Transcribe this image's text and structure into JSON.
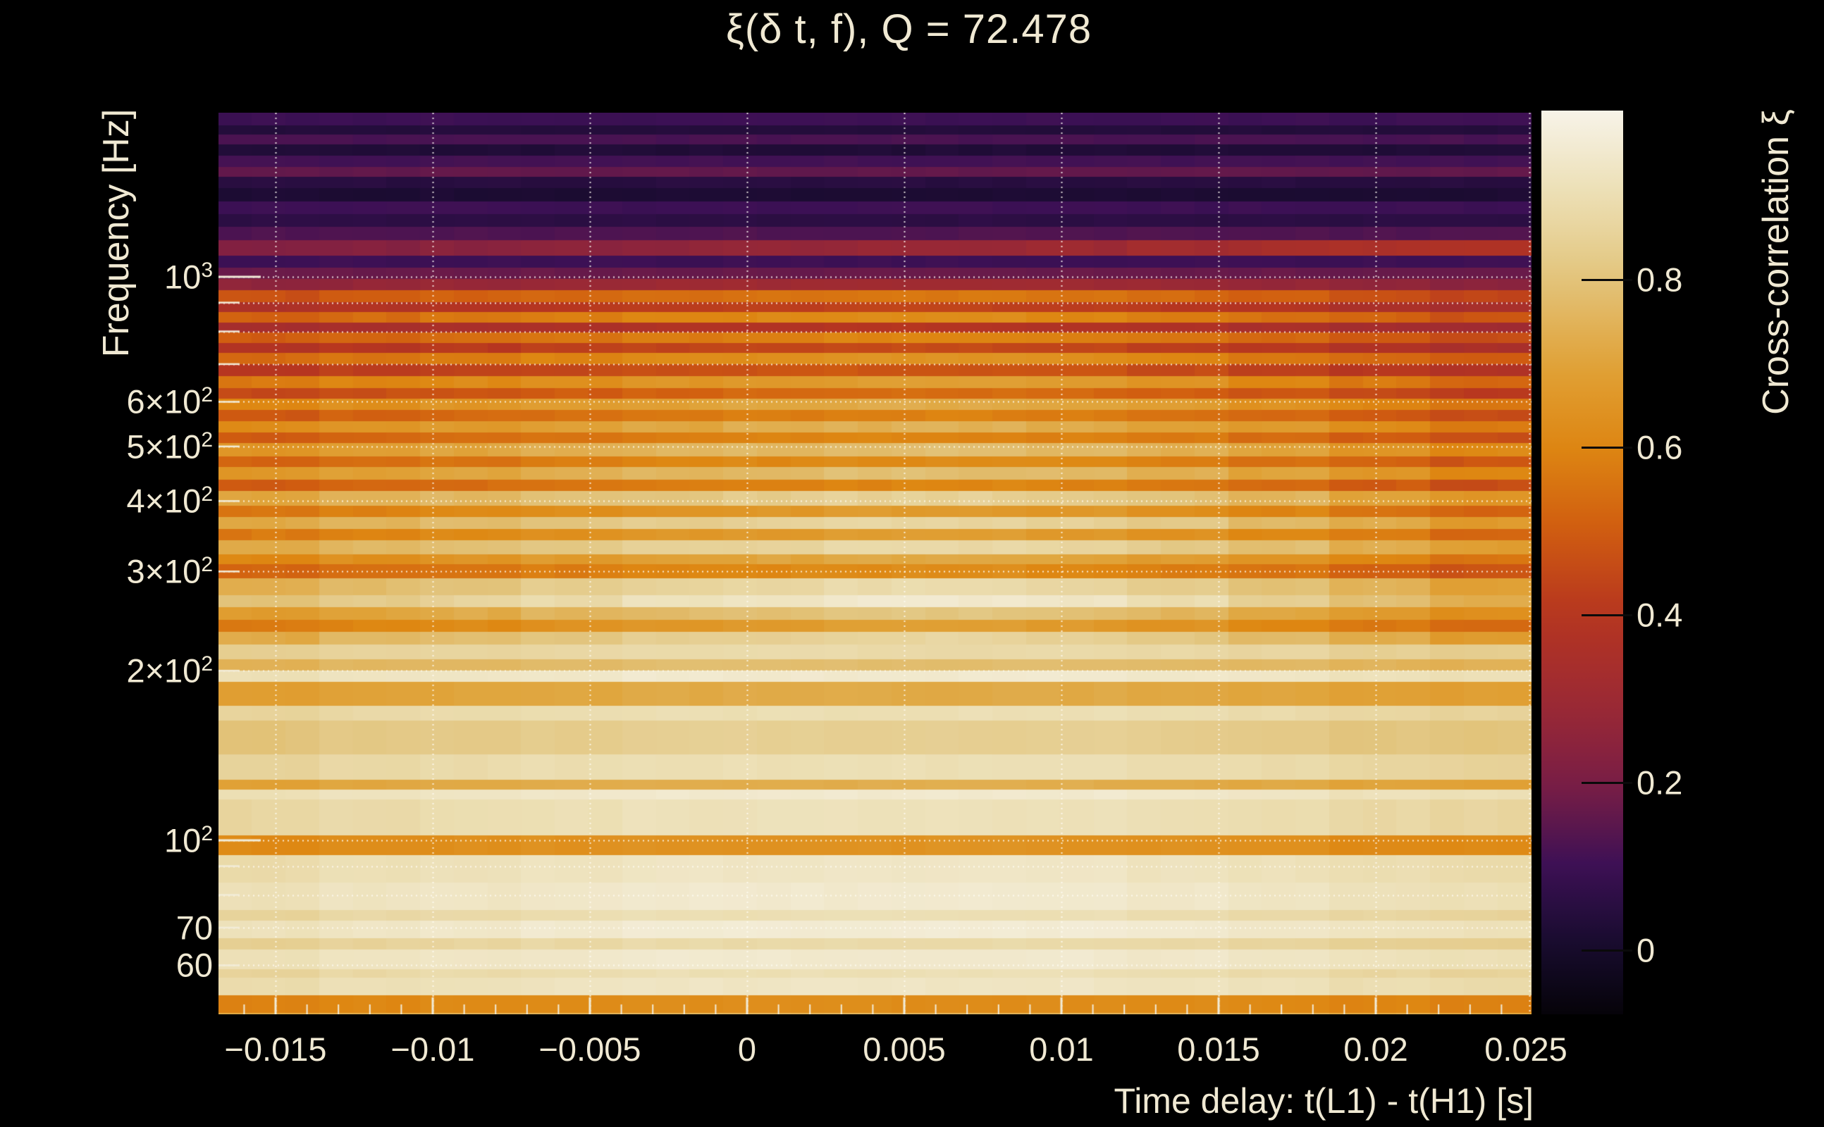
{
  "title": "ξ(δ t, f), Q = 72.478",
  "colors": {
    "background": "#000000",
    "text": "#f0e9d3",
    "gridline": "rgba(255,253,244,0.85)",
    "axis_tick": "#f2ecd8",
    "colorbar_tick": "#0a0a0a"
  },
  "chart_data": {
    "type": "heatmap",
    "title": "ξ(δ t, f), Q = 72.478",
    "xlabel": "Time delay: t(L1) - t(H1) [s]",
    "ylabel": "Frequency [Hz]",
    "colorbar_label": "Cross-correlation ξ",
    "x_range_s": [
      -0.01688,
      0.02496
    ],
    "y_range_hz": [
      48.8,
      1955
    ],
    "y_scale": "log",
    "grid": "dotted-white-major-and-minor",
    "x_ticks": {
      "values": [
        -0.015,
        -0.01,
        -0.005,
        0,
        0.005,
        0.01,
        0.015,
        0.02,
        0.025
      ],
      "labels": [
        "−0.015",
        "−0.01",
        "−0.005",
        "0",
        "0.005",
        "0.01",
        "0.015",
        "0.02",
        "0.025"
      ],
      "minor_step_s": 0.001
    },
    "y_ticks": [
      {
        "f": 1000,
        "base": "10",
        "exp": "3"
      },
      {
        "f": 600,
        "base": "6×10",
        "exp": "2"
      },
      {
        "f": 500,
        "base": "5×10",
        "exp": "2"
      },
      {
        "f": 400,
        "base": "4×10",
        "exp": "2"
      },
      {
        "f": 300,
        "base": "3×10",
        "exp": "2"
      },
      {
        "f": 200,
        "base": "2×10",
        "exp": "2"
      },
      {
        "f": 100,
        "base": "10",
        "exp": "2"
      },
      {
        "f": 70,
        "base": "70",
        "exp": ""
      },
      {
        "f": 60,
        "base": "60",
        "exp": ""
      }
    ],
    "y_gridlines_hz": [
      1000,
      900,
      800,
      700,
      600,
      500,
      400,
      300,
      200,
      100,
      90,
      80,
      70,
      60
    ],
    "colorbar": {
      "min": -0.077,
      "max": 1.0,
      "ticks": [
        0,
        0.2,
        0.4,
        0.6,
        0.8
      ],
      "tick_labels": [
        "0",
        "0.2",
        "0.4",
        "0.6",
        "0.8"
      ]
    },
    "colormap_stops": [
      {
        "v": -0.077,
        "c": "#060309"
      },
      {
        "v": 0.0,
        "c": "#150b2b"
      },
      {
        "v": 0.1,
        "c": "#3c1055"
      },
      {
        "v": 0.2,
        "c": "#7b1e45"
      },
      {
        "v": 0.3,
        "c": "#9d2a33"
      },
      {
        "v": 0.4,
        "c": "#b63520"
      },
      {
        "v": 0.5,
        "c": "#d05c10"
      },
      {
        "v": 0.6,
        "c": "#de8712"
      },
      {
        "v": 0.7,
        "c": "#e0a339"
      },
      {
        "v": 0.8,
        "c": "#e2c47c"
      },
      {
        "v": 0.9,
        "c": "#ecdfb4"
      },
      {
        "v": 1.0,
        "c": "#f7f3e8"
      }
    ],
    "columns_delay_s": [
      -0.0152,
      -0.012,
      -0.0088,
      -0.0056,
      -0.0024,
      0.0009,
      0.0041,
      0.0073,
      0.0105,
      0.0137,
      0.0169,
      0.0201,
      0.0234
    ],
    "column_profiles": {
      "d": [
        1.0,
        1.0,
        1.0,
        1.0,
        1.0,
        1.0,
        1.0,
        1.0,
        1.0,
        1.0,
        1.0,
        1.0,
        1.0
      ],
      "r": [
        0.8,
        0.84,
        0.88,
        0.92,
        0.96,
        1.0,
        1.04,
        1.08,
        1.12,
        1.18,
        1.25,
        1.33,
        1.4
      ],
      "m": [
        0.86,
        0.9,
        0.93,
        0.96,
        0.99,
        1.01,
        1.03,
        1.03,
        1.01,
        0.97,
        0.92,
        0.86,
        0.8
      ],
      "l": [
        0.95,
        0.97,
        0.98,
        0.99,
        1.0,
        1.0,
        1.0,
        1.0,
        1.0,
        0.99,
        0.98,
        0.96,
        0.95
      ]
    },
    "jitter_amp": {
      "d": 0.012,
      "r": 0.02,
      "m": 0.022,
      "l": 0.012
    },
    "rows": [
      {
        "f_hi": 1955,
        "f_lo": 1855,
        "xi": 0.1,
        "p": "d"
      },
      {
        "f_hi": 1855,
        "f_lo": 1784,
        "xi": 0.04,
        "p": "d"
      },
      {
        "f_hi": 1784,
        "f_lo": 1716,
        "xi": 0.12,
        "p": "d"
      },
      {
        "f_hi": 1716,
        "f_lo": 1638,
        "xi": 0.03,
        "p": "d"
      },
      {
        "f_hi": 1638,
        "f_lo": 1564,
        "xi": 0.11,
        "p": "d"
      },
      {
        "f_hi": 1564,
        "f_lo": 1501,
        "xi": 0.16,
        "p": "d"
      },
      {
        "f_hi": 1501,
        "f_lo": 1434,
        "xi": 0.05,
        "p": "d"
      },
      {
        "f_hi": 1434,
        "f_lo": 1360,
        "xi": 0.02,
        "p": "d"
      },
      {
        "f_hi": 1360,
        "f_lo": 1290,
        "xi": 0.1,
        "p": "d"
      },
      {
        "f_hi": 1290,
        "f_lo": 1224,
        "xi": 0.06,
        "p": "d"
      },
      {
        "f_hi": 1224,
        "f_lo": 1161,
        "xi": 0.13,
        "p": "d"
      },
      {
        "f_hi": 1161,
        "f_lo": 1089,
        "xi": 0.27,
        "p": "r"
      },
      {
        "f_hi": 1089,
        "f_lo": 1038,
        "xi": 0.1,
        "p": "d"
      },
      {
        "f_hi": 1038,
        "f_lo": 991,
        "xi": 0.17,
        "p": "d"
      },
      {
        "f_hi": 991,
        "f_lo": 946,
        "xi": 0.3,
        "p": "m"
      },
      {
        "f_hi": 946,
        "f_lo": 899,
        "xi": 0.55,
        "p": "m"
      },
      {
        "f_hi": 899,
        "f_lo": 864,
        "xi": 0.42,
        "p": "m"
      },
      {
        "f_hi": 864,
        "f_lo": 829,
        "xi": 0.6,
        "p": "m"
      },
      {
        "f_hi": 829,
        "f_lo": 796,
        "xi": 0.38,
        "p": "m"
      },
      {
        "f_hi": 796,
        "f_lo": 761,
        "xi": 0.58,
        "p": "m"
      },
      {
        "f_hi": 761,
        "f_lo": 731,
        "xi": 0.44,
        "p": "m"
      },
      {
        "f_hi": 731,
        "f_lo": 698,
        "xi": 0.62,
        "p": "m"
      },
      {
        "f_hi": 698,
        "f_lo": 666,
        "xi": 0.47,
        "p": "m"
      },
      {
        "f_hi": 666,
        "f_lo": 633,
        "xi": 0.66,
        "p": "m"
      },
      {
        "f_hi": 633,
        "f_lo": 607,
        "xi": 0.52,
        "p": "m"
      },
      {
        "f_hi": 607,
        "f_lo": 580,
        "xi": 0.7,
        "p": "m"
      },
      {
        "f_hi": 580,
        "f_lo": 554,
        "xi": 0.57,
        "p": "m"
      },
      {
        "f_hi": 554,
        "f_lo": 529,
        "xi": 0.72,
        "p": "m"
      },
      {
        "f_hi": 529,
        "f_lo": 506,
        "xi": 0.58,
        "p": "m"
      },
      {
        "f_hi": 506,
        "f_lo": 480,
        "xi": 0.76,
        "p": "m"
      },
      {
        "f_hi": 480,
        "f_lo": 459,
        "xi": 0.6,
        "p": "m"
      },
      {
        "f_hi": 459,
        "f_lo": 436,
        "xi": 0.76,
        "p": "m"
      },
      {
        "f_hi": 436,
        "f_lo": 416,
        "xi": 0.58,
        "p": "m"
      },
      {
        "f_hi": 416,
        "f_lo": 392,
        "xi": 0.82,
        "p": "m"
      },
      {
        "f_hi": 392,
        "f_lo": 374,
        "xi": 0.65,
        "p": "m"
      },
      {
        "f_hi": 374,
        "f_lo": 356,
        "xi": 0.84,
        "p": "m"
      },
      {
        "f_hi": 356,
        "f_lo": 340,
        "xi": 0.66,
        "p": "m"
      },
      {
        "f_hi": 340,
        "f_lo": 321,
        "xi": 0.85,
        "p": "m"
      },
      {
        "f_hi": 321,
        "f_lo": 309,
        "xi": 0.7,
        "p": "m"
      },
      {
        "f_hi": 309,
        "f_lo": 291,
        "xi": 0.6,
        "p": "m"
      },
      {
        "f_hi": 291,
        "f_lo": 272,
        "xi": 0.86,
        "p": "m"
      },
      {
        "f_hi": 272,
        "f_lo": 259,
        "xi": 0.92,
        "p": "m"
      },
      {
        "f_hi": 259,
        "f_lo": 246,
        "xi": 0.78,
        "p": "m"
      },
      {
        "f_hi": 246,
        "f_lo": 234,
        "xi": 0.66,
        "p": "m"
      },
      {
        "f_hi": 234,
        "f_lo": 222,
        "xi": 0.84,
        "p": "m"
      },
      {
        "f_hi": 222,
        "f_lo": 209,
        "xi": 0.88,
        "p": "l"
      },
      {
        "f_hi": 209,
        "f_lo": 200,
        "xi": 0.78,
        "p": "l"
      },
      {
        "f_hi": 200,
        "f_lo": 191,
        "xi": 0.95,
        "p": "l"
      },
      {
        "f_hi": 191,
        "f_lo": 173,
        "xi": 0.72,
        "p": "l"
      },
      {
        "f_hi": 173,
        "f_lo": 163,
        "xi": 0.9,
        "p": "l"
      },
      {
        "f_hi": 163,
        "f_lo": 142,
        "xi": 0.84,
        "p": "l"
      },
      {
        "f_hi": 142,
        "f_lo": 128,
        "xi": 0.9,
        "p": "l"
      },
      {
        "f_hi": 128,
        "f_lo": 123,
        "xi": 0.73,
        "p": "l"
      },
      {
        "f_hi": 123,
        "f_lo": 118,
        "xi": 0.95,
        "p": "l"
      },
      {
        "f_hi": 118,
        "f_lo": 102,
        "xi": 0.91,
        "p": "l"
      },
      {
        "f_hi": 102,
        "f_lo": 94,
        "xi": 0.64,
        "p": "l"
      },
      {
        "f_hi": 94,
        "f_lo": 84,
        "xi": 0.93,
        "p": "l"
      },
      {
        "f_hi": 84,
        "f_lo": 75,
        "xi": 0.95,
        "p": "l"
      },
      {
        "f_hi": 75,
        "f_lo": 72,
        "xi": 0.9,
        "p": "l"
      },
      {
        "f_hi": 72,
        "f_lo": 67,
        "xi": 0.96,
        "p": "l"
      },
      {
        "f_hi": 67,
        "f_lo": 64,
        "xi": 0.88,
        "p": "l"
      },
      {
        "f_hi": 64,
        "f_lo": 59,
        "xi": 0.95,
        "p": "l"
      },
      {
        "f_hi": 59,
        "f_lo": 57,
        "xi": 0.9,
        "p": "l"
      },
      {
        "f_hi": 57,
        "f_lo": 53,
        "xi": 0.93,
        "p": "l"
      },
      {
        "f_hi": 53,
        "f_lo": 49.3,
        "xi": 0.62,
        "p": "l"
      },
      {
        "f_hi": 49.3,
        "f_lo": 48.8,
        "xi": 0.75,
        "p": "l"
      }
    ]
  }
}
